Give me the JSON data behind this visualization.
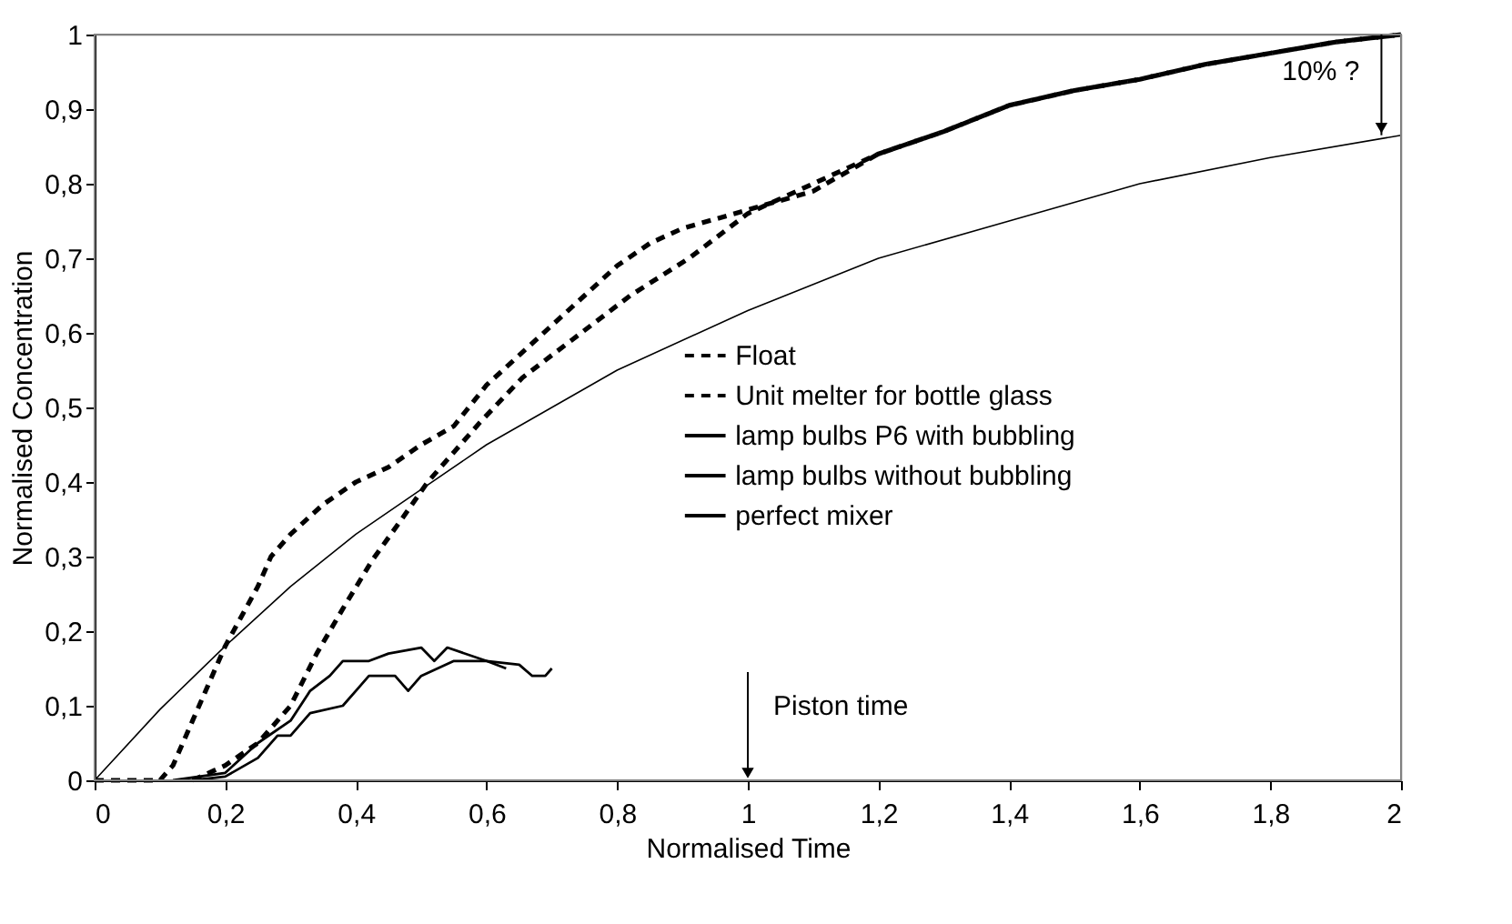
{
  "chart_data": {
    "type": "line",
    "xlabel": "Normalised Time",
    "ylabel": "Normalised Concentration",
    "xlim": [
      0,
      2
    ],
    "ylim": [
      0,
      1
    ],
    "xticks": [
      0,
      {
        "value": 0.2,
        "label": "0,2"
      },
      {
        "value": 0.4,
        "label": "0,4"
      },
      {
        "value": 0.6,
        "label": "0,6"
      },
      {
        "value": 0.8,
        "label": "0,8"
      },
      1,
      {
        "value": 1.2,
        "label": "1,2"
      },
      {
        "value": 1.4,
        "label": "1,4"
      },
      {
        "value": 1.6,
        "label": "1,6"
      },
      {
        "value": 1.8,
        "label": "1,8"
      },
      2
    ],
    "yticks": [
      0,
      {
        "value": 0.1,
        "label": "0,1"
      },
      {
        "value": 0.2,
        "label": "0,2"
      },
      {
        "value": 0.3,
        "label": "0,3"
      },
      {
        "value": 0.4,
        "label": "0,4"
      },
      {
        "value": 0.5,
        "label": "0,5"
      },
      {
        "value": 0.6,
        "label": "0,6"
      },
      {
        "value": 0.7,
        "label": "0,7"
      },
      {
        "value": 0.8,
        "label": "0,8"
      },
      {
        "value": 0.9,
        "label": "0,9"
      },
      1
    ],
    "grid": false,
    "legend": "center",
    "marker": "none",
    "series": [
      {
        "name": "Float",
        "color": "#000000",
        "line_style": "dashed",
        "x": [
          0,
          0.1,
          0.12,
          0.15,
          0.2,
          0.25,
          0.27,
          0.3,
          0.35,
          0.4,
          0.45,
          0.5,
          0.55,
          0.6,
          0.65,
          0.7,
          0.75,
          0.8,
          0.85,
          0.9,
          1.0,
          1.1,
          1.2,
          1.3,
          1.4,
          1.5,
          1.6,
          1.7,
          1.8,
          1.9,
          2.0
        ],
        "values": [
          0,
          0,
          0.02,
          0.08,
          0.18,
          0.26,
          0.3,
          0.33,
          0.37,
          0.4,
          0.42,
          0.45,
          0.475,
          0.53,
          0.57,
          0.61,
          0.65,
          0.69,
          0.72,
          0.74,
          0.765,
          0.79,
          0.84,
          0.87,
          0.905,
          0.925,
          0.94,
          0.96,
          0.975,
          0.99,
          1.0
        ]
      },
      {
        "name": "Unit melter for bottle glass",
        "color": "#000000",
        "line_style": "dashed",
        "x": [
          0.15,
          0.2,
          0.25,
          0.3,
          0.34,
          0.38,
          0.425,
          0.47,
          0.51,
          0.55,
          0.59,
          0.655,
          0.73,
          0.82,
          0.91,
          1.0,
          1.1,
          1.2,
          1.3,
          1.4,
          1.5,
          1.6,
          1.7,
          1.8,
          1.9,
          2.0
        ],
        "values": [
          0,
          0.02,
          0.05,
          0.1,
          0.17,
          0.23,
          0.295,
          0.35,
          0.4,
          0.44,
          0.48,
          0.54,
          0.59,
          0.65,
          0.7,
          0.76,
          0.8,
          0.84,
          0.87,
          0.905,
          0.925,
          0.94,
          0.96,
          0.975,
          0.99,
          1.0
        ]
      },
      {
        "name": "lamp bulbs P6 with bubbling",
        "color": "#000000",
        "line_style": "solid",
        "x": [
          0.12,
          0.2,
          0.25,
          0.3,
          0.33,
          0.36,
          0.38,
          0.42,
          0.45,
          0.5,
          0.52,
          0.54,
          0.6,
          0.63
        ],
        "values": [
          0,
          0.01,
          0.05,
          0.08,
          0.12,
          0.14,
          0.16,
          0.16,
          0.17,
          0.178,
          0.16,
          0.178,
          0.16,
          0.15
        ]
      },
      {
        "name": "lamp bulbs without bubbling",
        "color": "#000000",
        "line_style": "solid",
        "x": [
          0.15,
          0.2,
          0.25,
          0.28,
          0.3,
          0.33,
          0.38,
          0.4,
          0.42,
          0.46,
          0.48,
          0.5,
          0.55,
          0.6,
          0.65,
          0.67,
          0.69,
          0.7
        ],
        "values": [
          0,
          0.005,
          0.03,
          0.06,
          0.06,
          0.09,
          0.1,
          0.12,
          0.14,
          0.14,
          0.12,
          0.14,
          0.16,
          0.16,
          0.155,
          0.14,
          0.14,
          0.15
        ]
      },
      {
        "name": "perfect mixer",
        "color": "#000000",
        "line_style": "solid",
        "x": [
          0,
          0.1,
          0.2,
          0.3,
          0.4,
          0.5,
          0.6,
          0.8,
          1.0,
          1.2,
          1.4,
          1.6,
          1.8,
          2.0
        ],
        "values": [
          0,
          0.095,
          0.18,
          0.26,
          0.33,
          0.39,
          0.45,
          0.55,
          0.63,
          0.7,
          0.75,
          0.8,
          0.835,
          0.865
        ]
      }
    ],
    "annotations": [
      "Piston time",
      {
        "text": "10% ?",
        "x": 1.97,
        "y": 0.865
      }
    ]
  }
}
